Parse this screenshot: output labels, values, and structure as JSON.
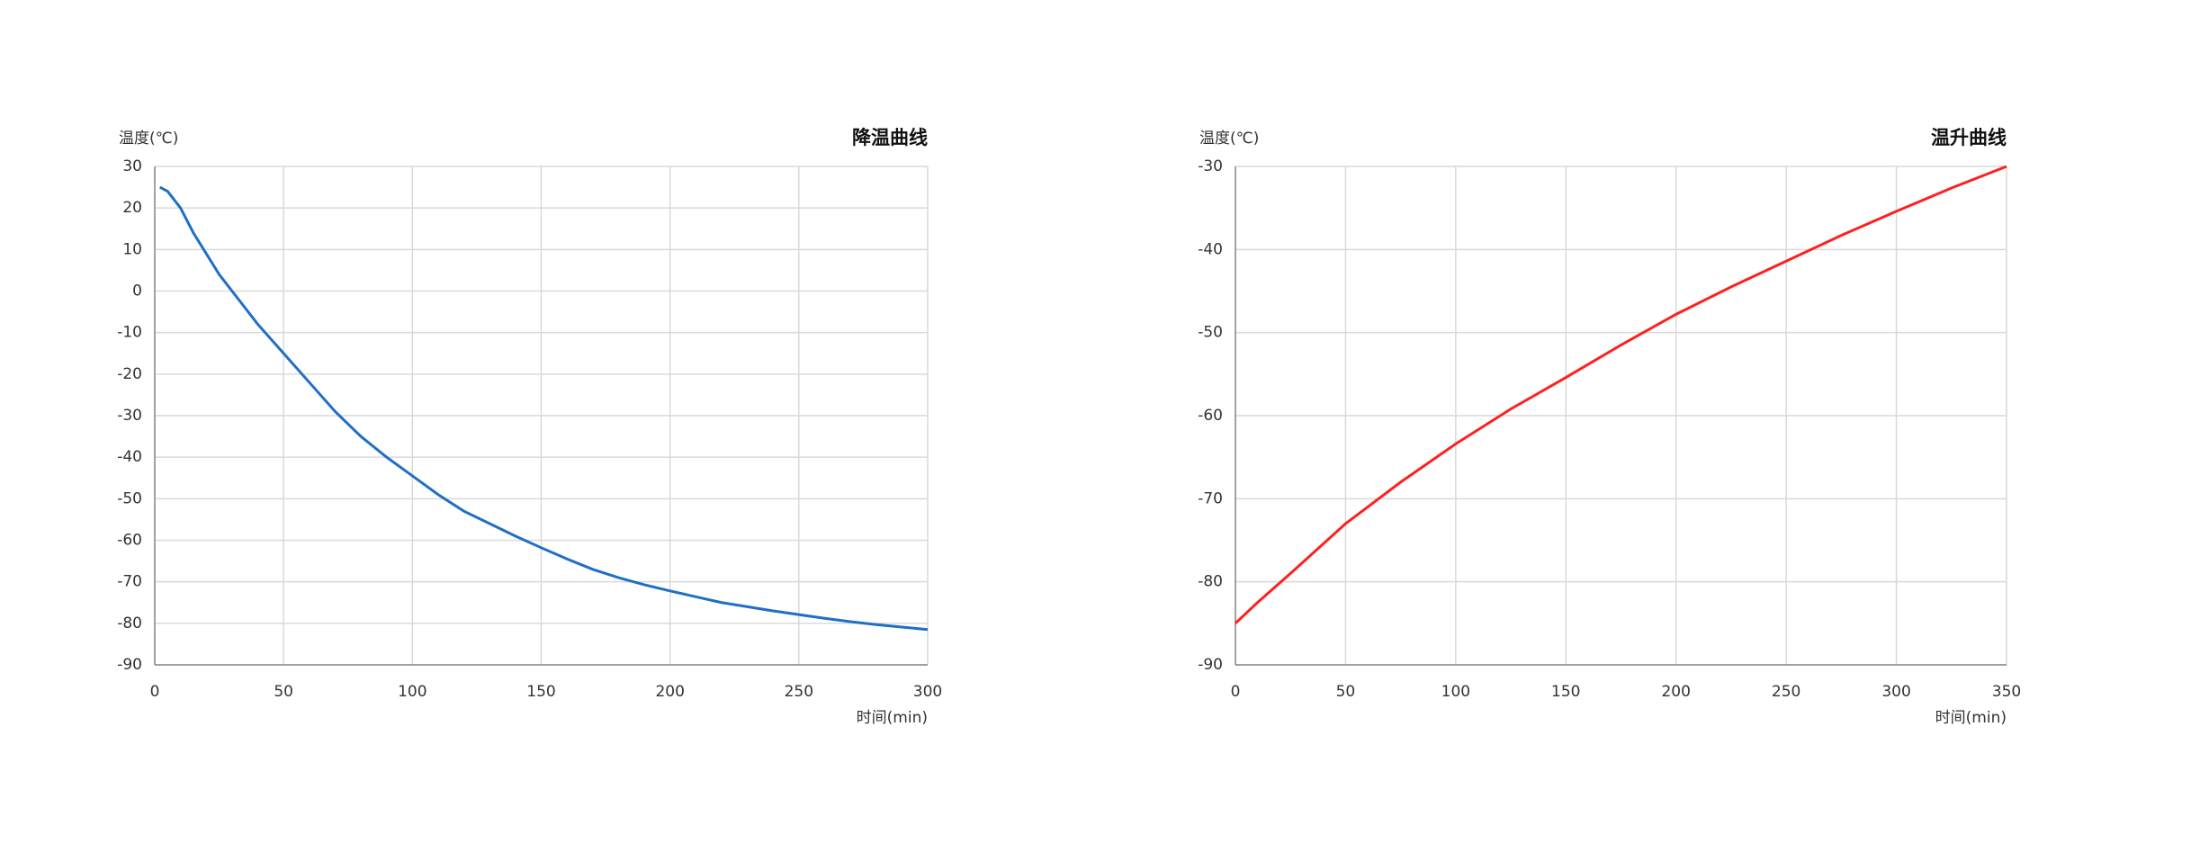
{
  "chart_data": [
    {
      "type": "line",
      "title": "降温曲线",
      "y_label": "温度(℃)",
      "x_label": "时间(min)",
      "x": [
        2,
        5,
        10,
        15,
        20,
        25,
        30,
        40,
        50,
        60,
        70,
        80,
        90,
        100,
        110,
        120,
        130,
        140,
        150,
        160,
        170,
        180,
        190,
        200,
        210,
        220,
        230,
        240,
        250,
        260,
        270,
        280,
        290,
        300
      ],
      "series": [
        {
          "color": "#1f6fc5",
          "values": [
            25,
            24,
            20,
            14,
            9,
            4,
            0,
            -8,
            -15,
            -22,
            -29,
            -35,
            -40,
            -44.5,
            -49,
            -53,
            -56,
            -59,
            -61.8,
            -64.5,
            -67,
            -69,
            -70.7,
            -72.2,
            -73.6,
            -75,
            -76,
            -77,
            -77.9,
            -78.8,
            -79.6,
            -80.3,
            -80.9,
            -81.5
          ]
        }
      ],
      "xlim": [
        0,
        300
      ],
      "xticks": [
        0,
        50,
        100,
        150,
        200,
        250,
        300
      ],
      "ylim": [
        -90,
        30
      ],
      "yticks": [
        30,
        20,
        10,
        0,
        -10,
        -20,
        -30,
        -40,
        -50,
        -60,
        -70,
        -80,
        -90
      ],
      "grid": true
    },
    {
      "type": "line",
      "title": "温升曲线",
      "y_label": "温度(℃)",
      "x_label": "时间(min)",
      "x": [
        0,
        10,
        25,
        50,
        75,
        100,
        125,
        150,
        175,
        200,
        225,
        250,
        275,
        300,
        325,
        350
      ],
      "series": [
        {
          "color": "#ff2020",
          "values": [
            -85,
            -82.5,
            -79,
            -73,
            -68,
            -63.4,
            -59.2,
            -55.4,
            -51.5,
            -47.8,
            -44.5,
            -41.4,
            -38.3,
            -35.4,
            -32.6,
            -30
          ]
        }
      ],
      "xlim": [
        0,
        350
      ],
      "xticks": [
        0,
        50,
        100,
        150,
        200,
        250,
        300,
        350
      ],
      "ylim": [
        -90,
        -30
      ],
      "yticks": [
        -30,
        -40,
        -50,
        -60,
        -70,
        -80,
        -90
      ],
      "grid": true
    }
  ]
}
